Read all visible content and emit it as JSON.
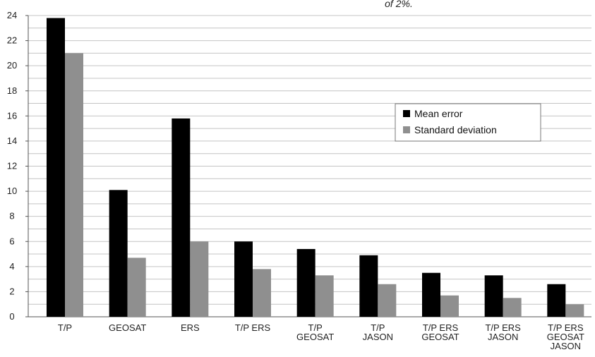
{
  "chart_data": {
    "type": "bar",
    "top_note": "of 2%.",
    "categories": [
      [
        "T/P"
      ],
      [
        "GEOSAT"
      ],
      [
        "ERS"
      ],
      [
        "T/P ERS"
      ],
      [
        "T/P",
        "GEOSAT"
      ],
      [
        "T/P",
        "JASON"
      ],
      [
        "T/P ERS",
        "GEOSAT"
      ],
      [
        "T/P ERS",
        "JASON"
      ],
      [
        "T/P ERS",
        "GEOSAT",
        "JASON"
      ]
    ],
    "series": [
      {
        "name": "Mean error",
        "color": "#000000",
        "values": [
          23.8,
          10.1,
          15.8,
          6.0,
          5.4,
          4.9,
          3.5,
          3.3,
          2.6
        ]
      },
      {
        "name": "Standard deviation",
        "color": "#8f8f8f",
        "values": [
          21.0,
          4.7,
          6.0,
          3.8,
          3.3,
          2.6,
          1.7,
          1.5,
          1.0
        ]
      }
    ],
    "ylim": [
      0,
      24
    ],
    "yticks": [
      0,
      2,
      4,
      6,
      8,
      10,
      12,
      14,
      16,
      18,
      20,
      22,
      24
    ],
    "grid": true,
    "legend_position": "right"
  }
}
